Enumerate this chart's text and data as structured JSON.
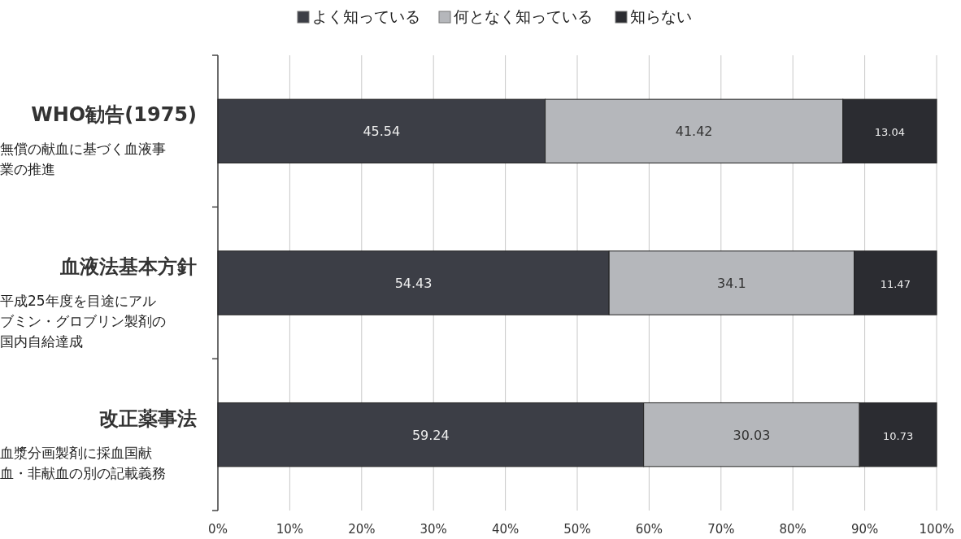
{
  "chart_data": {
    "type": "bar",
    "orientation": "horizontal",
    "stacked": true,
    "data_labels": true,
    "grid": "x",
    "legend": "top",
    "categories": [
      "WHO勧告(1975)",
      "血液法基本方針",
      "改正薬事法"
    ],
    "annotations": [
      "無償の献血に基づく血液事業の推進",
      "平成25年度を目途にアルブミン・グロブリン製剤の国内自給達成",
      "血漿分画製剤に採血国献血・非献血の別の記載義務"
    ],
    "series": [
      {
        "name": "よく知っている",
        "color": "#3c3e46",
        "values": [
          45.54,
          54.43,
          59.24
        ]
      },
      {
        "name": "何となく知っている",
        "color": "#b5b7bb",
        "values": [
          41.42,
          34.1,
          30.03
        ]
      },
      {
        "name": "知らない",
        "color": "#2b2c31",
        "values": [
          13.04,
          11.47,
          10.73
        ]
      }
    ],
    "xlim": [
      0,
      100
    ],
    "xticks": [
      {
        "value": 0,
        "label": "0%"
      },
      {
        "value": 10,
        "label": "10%"
      },
      {
        "value": 20,
        "label": "20%"
      },
      {
        "value": 30,
        "label": "30%"
      },
      {
        "value": 40,
        "label": "40%"
      },
      {
        "value": 50,
        "label": "50%"
      },
      {
        "value": 60,
        "label": "60%"
      },
      {
        "value": 70,
        "label": "70%"
      },
      {
        "value": 80,
        "label": "80%"
      },
      {
        "value": 90,
        "label": "90%"
      },
      {
        "value": 100,
        "label": "100%"
      }
    ]
  }
}
